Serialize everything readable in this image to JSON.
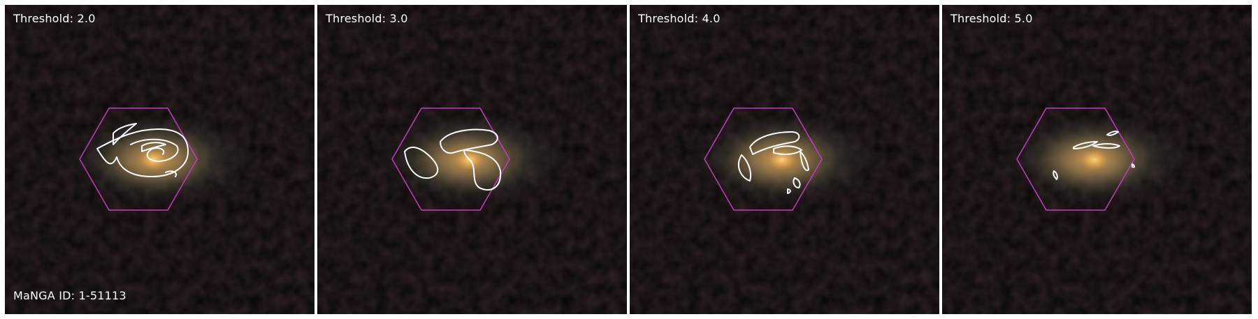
{
  "panels": [
    {
      "threshold_label": "Threshold: 2.0"
    },
    {
      "threshold_label": "Threshold: 3.0"
    },
    {
      "threshold_label": "Threshold: 4.0"
    },
    {
      "threshold_label": "Threshold: 5.0"
    }
  ],
  "manga_id_label": "MaNGA ID: 1-51113",
  "colors": {
    "hexagon": "#c43bc4",
    "contour": "#ffffff",
    "background": "#060504",
    "galaxy_core": "#f0b458"
  },
  "icons": [
    "galaxy-image",
    "ifu-hexagon",
    "contour"
  ]
}
